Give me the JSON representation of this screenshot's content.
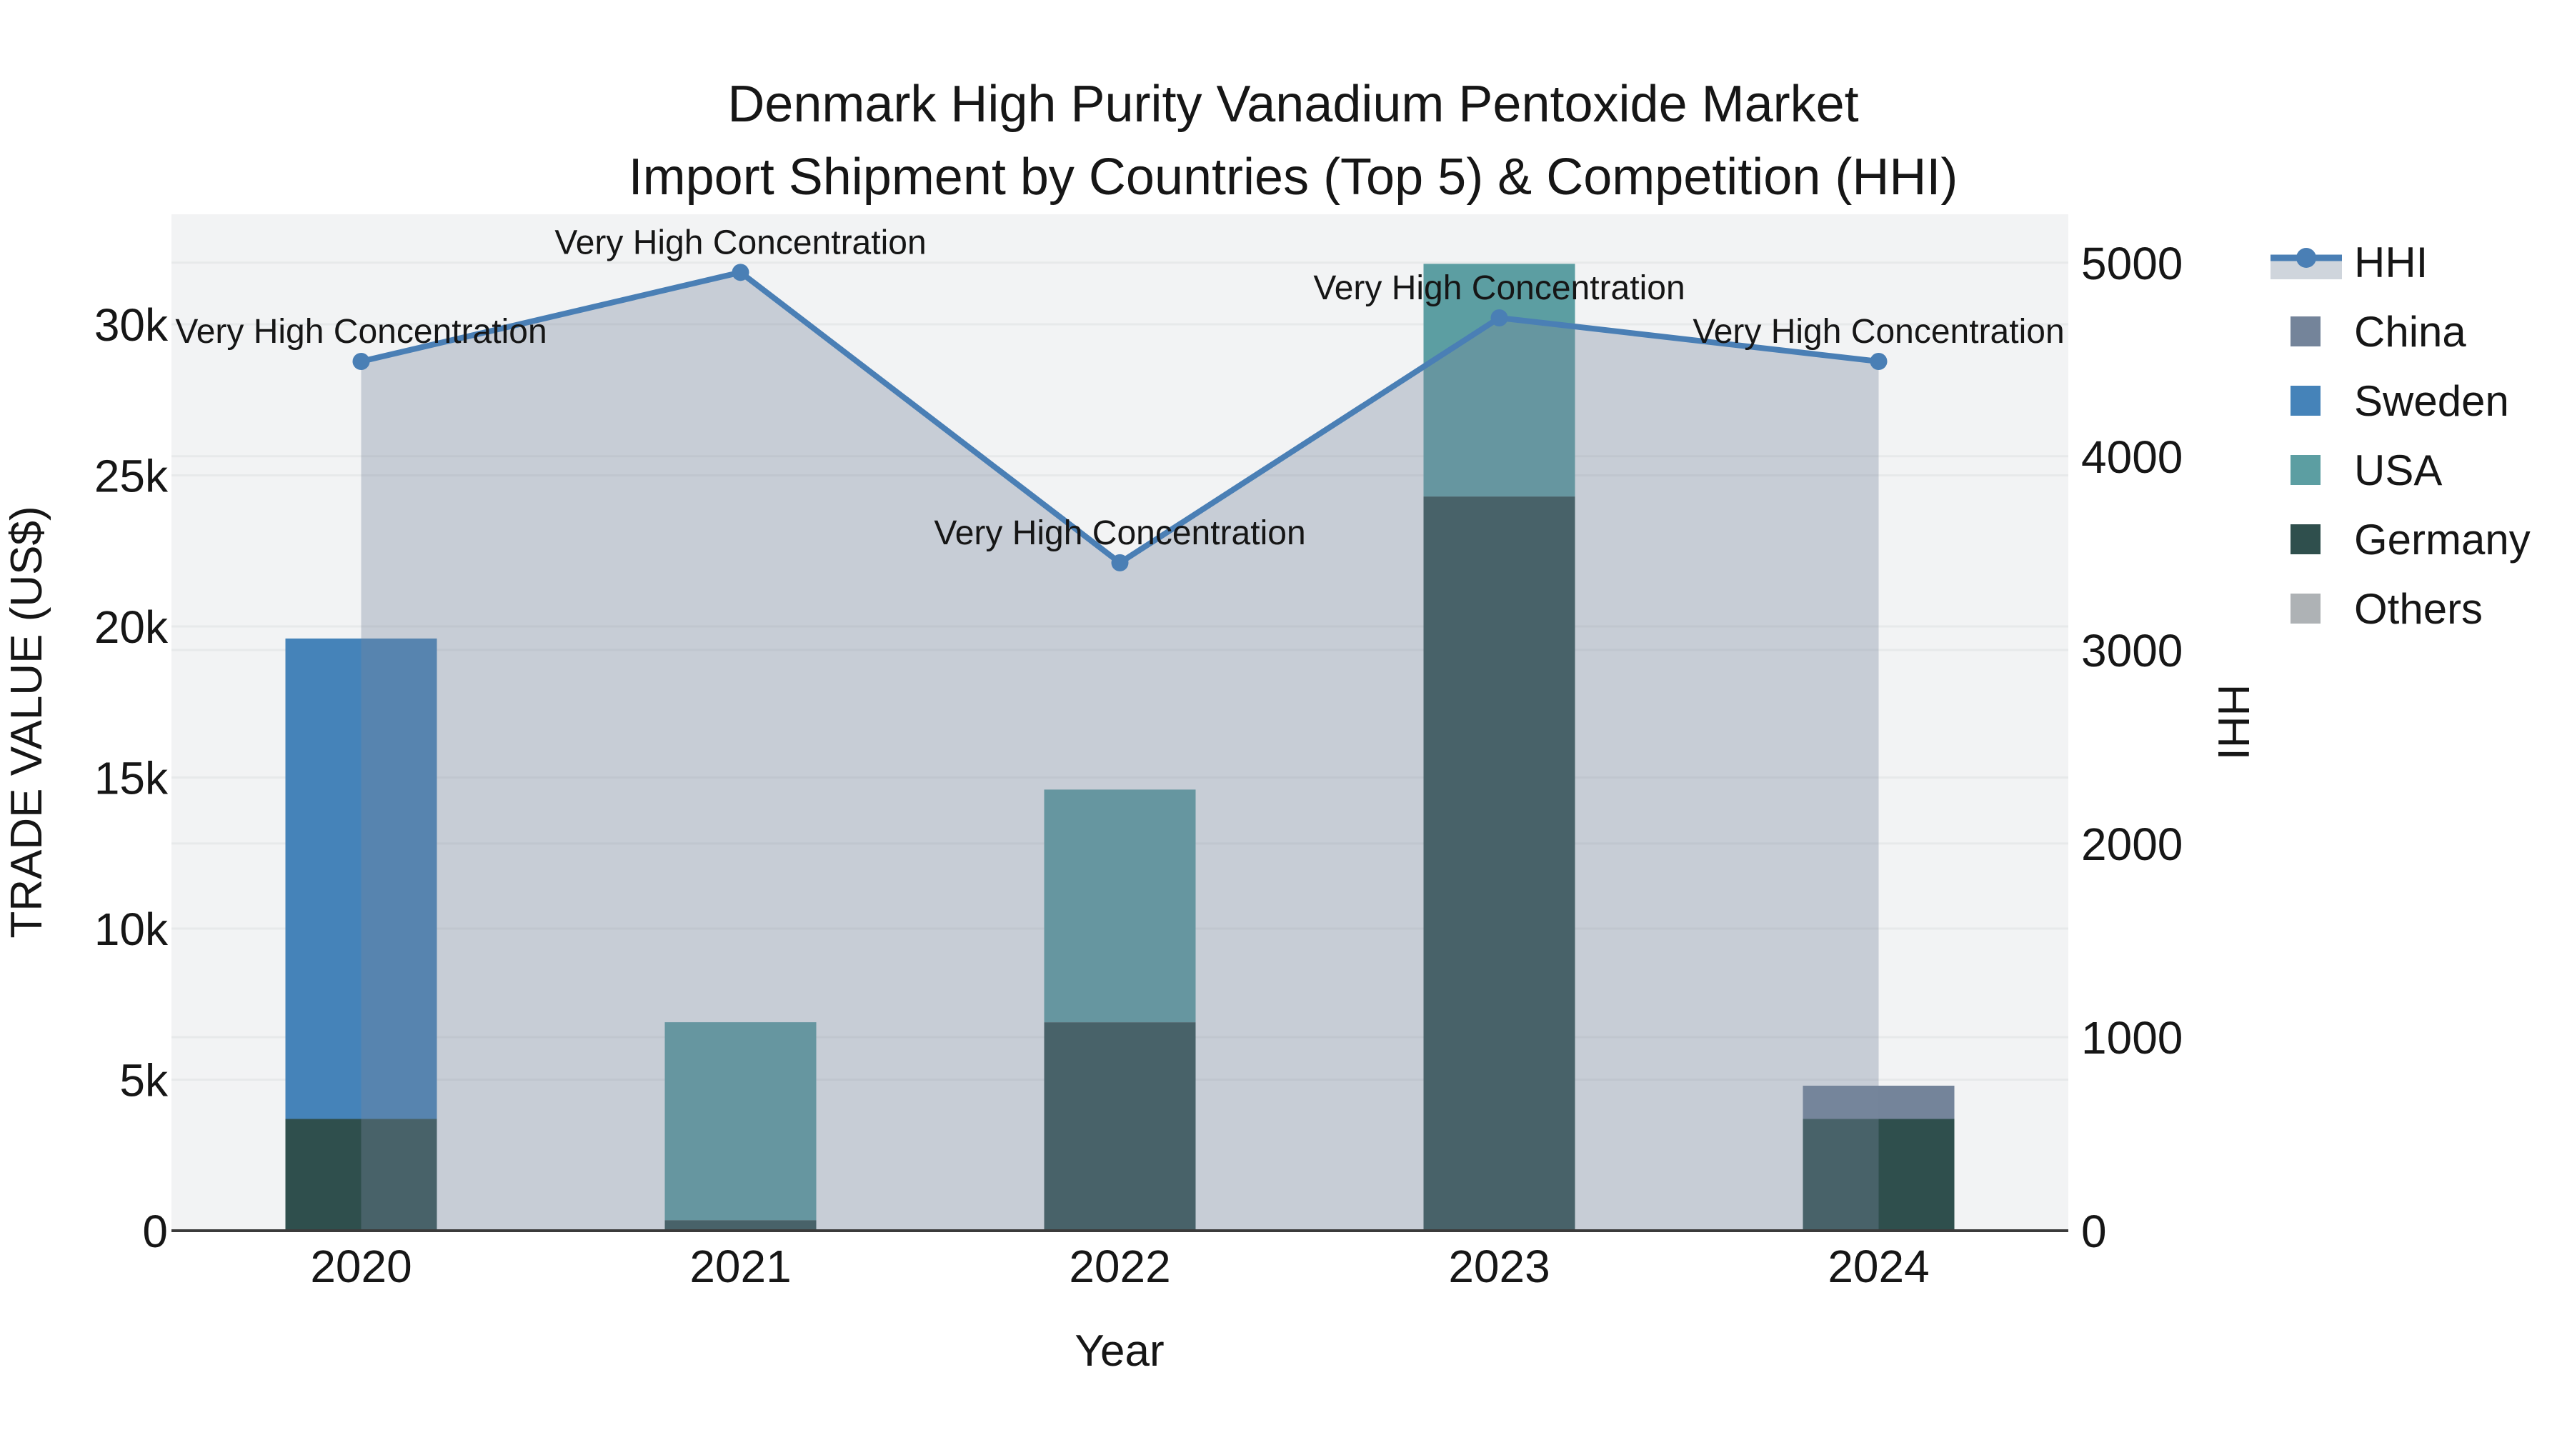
{
  "title": {
    "line1": "Denmark High Purity Vanadium Pentoxide Market",
    "line2": "Import Shipment by Countries (Top 5) & Competition (HHI)"
  },
  "axes": {
    "x_title": "Year",
    "y_left_title": "TRADE VALUE (US$)",
    "y_right_title": "HHI"
  },
  "legend": {
    "items": [
      {
        "label": "HHI",
        "type": "line",
        "color": "#4A7FB5",
        "band": "#CFD5DC"
      },
      {
        "label": "China",
        "type": "swatch",
        "color": "#74849A"
      },
      {
        "label": "Sweden",
        "type": "swatch",
        "color": "#4583B9"
      },
      {
        "label": "USA",
        "type": "swatch",
        "color": "#5C9EA2"
      },
      {
        "label": "Germany",
        "type": "swatch",
        "color": "#2F4F4D"
      },
      {
        "label": "Others",
        "type": "swatch",
        "color": "#AEB2B5"
      }
    ]
  },
  "chart_data": {
    "type": "bar",
    "title": "Denmark High Purity Vanadium Pentoxide Market\nImport Shipment by Countries (Top 5) & Competition (HHI)",
    "xlabel": "Year",
    "ylabel_left": "TRADE VALUE (US$)",
    "ylabel_right": "HHI",
    "categories": [
      "2020",
      "2021",
      "2022",
      "2023",
      "2024"
    ],
    "stack_order_bottom_to_top": [
      "Germany",
      "Sweden",
      "USA",
      "China",
      "Others"
    ],
    "series": [
      {
        "name": "China",
        "color": "#74849A",
        "values": [
          0,
          0,
          0,
          0,
          1100
        ]
      },
      {
        "name": "Sweden",
        "color": "#4583B9",
        "values": [
          15900,
          0,
          0,
          0,
          0
        ]
      },
      {
        "name": "USA",
        "color": "#5C9EA2",
        "values": [
          0,
          6550,
          7700,
          7700,
          0
        ]
      },
      {
        "name": "Germany",
        "color": "#2F4F4D",
        "values": [
          3700,
          350,
          6900,
          24300,
          3700
        ]
      },
      {
        "name": "Others",
        "color": "#AEB2B5",
        "values": [
          0,
          0,
          0,
          0,
          0
        ]
      }
    ],
    "line_series": {
      "name": "HHI",
      "color": "#4A7FB5",
      "fill_color": "rgba(119,136,158,0.35)",
      "values": [
        4490,
        4950,
        3450,
        4715,
        4490
      ]
    },
    "annotations": [
      "Very High Concentration",
      "Very High Concentration",
      "Very High Concentration",
      "Very High Concentration",
      "Very High Concentration"
    ],
    "ylim_left": [
      0,
      33640
    ],
    "ylim_right": [
      0,
      5250
    ],
    "yticks_left": {
      "values": [
        0,
        5000,
        10000,
        15000,
        20000,
        25000,
        30000
      ],
      "labels": [
        "0",
        "5k",
        "10k",
        "15k",
        "20k",
        "25k",
        "30k"
      ]
    },
    "yticks_right": {
      "values": [
        0,
        1000,
        2000,
        3000,
        4000,
        5000
      ],
      "labels": [
        "0",
        "1000",
        "2000",
        "3000",
        "4000",
        "5000"
      ]
    },
    "grid": true,
    "legend_position": "right",
    "plot_bg_color": "#F2F3F4",
    "grid_color": "#E7E9EA",
    "axis_line_color": "#3B3B3B"
  }
}
